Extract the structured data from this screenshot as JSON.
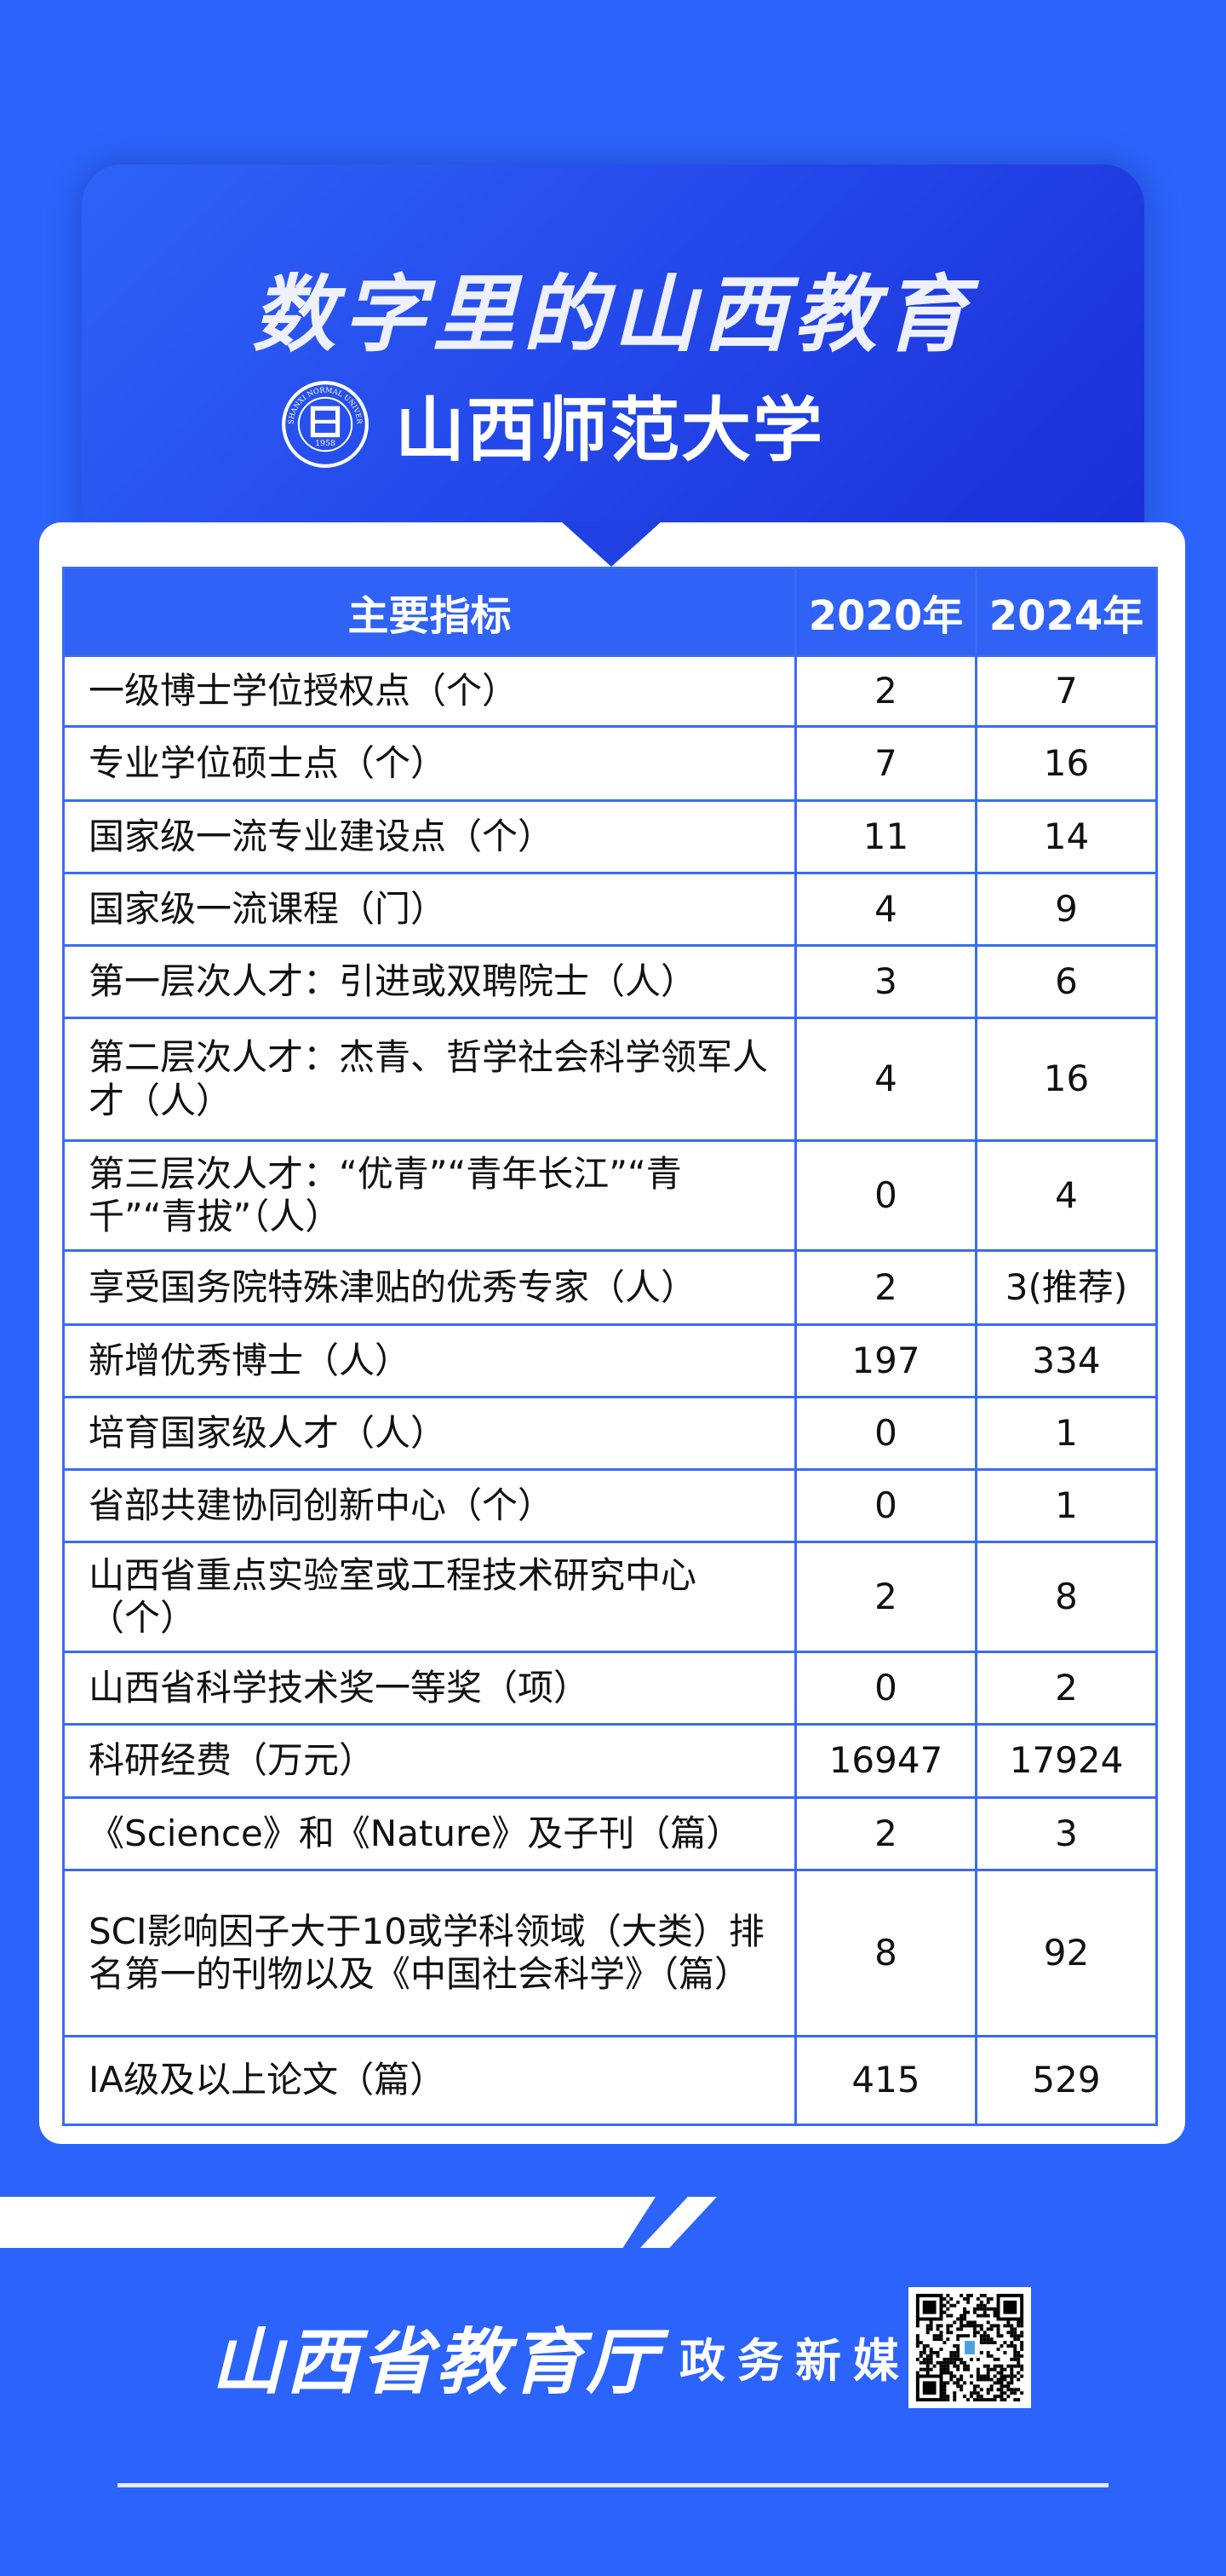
{
  "header": {
    "title": "数字里的山西教育",
    "university": "山西师范大学",
    "seal_text": "SHANXI NORMAL UNIVERSITY 1958"
  },
  "table": {
    "columns": [
      "主要指标",
      "2020年",
      "2024年"
    ],
    "rows": [
      {
        "indicator": "一级博士学位授权点（个）",
        "y2020": "2",
        "y2024": "7"
      },
      {
        "indicator": "专业学位硕士点（个）",
        "y2020": "7",
        "y2024": "16"
      },
      {
        "indicator": "国家级一流专业建设点（个）",
        "y2020": "11",
        "y2024": "14"
      },
      {
        "indicator": "国家级一流课程（门）",
        "y2020": "4",
        "y2024": "9"
      },
      {
        "indicator": "第一层次人才：引进或双聘院士（人）",
        "y2020": "3",
        "y2024": "6"
      },
      {
        "indicator": "第二层次人才：杰青、哲学社会科学领军人才（人）",
        "y2020": "4",
        "y2024": "16"
      },
      {
        "indicator": "第三层次人才：“优青”“青年长江”“青千”“青拔”（人）",
        "y2020": "0",
        "y2024": "4"
      },
      {
        "indicator": "享受国务院特殊津贴的优秀专家（人）",
        "y2020": "2",
        "y2024": "3(推荐)"
      },
      {
        "indicator": "新增优秀博士（人）",
        "y2020": "197",
        "y2024": "334"
      },
      {
        "indicator": "培育国家级人才（人）",
        "y2020": "0",
        "y2024": "1"
      },
      {
        "indicator": "省部共建协同创新中心（个）",
        "y2020": "0",
        "y2024": "1"
      },
      {
        "indicator": "山西省重点实验室或工程技术研究中心（个）",
        "y2020": "2",
        "y2024": "8"
      },
      {
        "indicator": "山西省科学技术奖一等奖（项）",
        "y2020": "0",
        "y2024": "2"
      },
      {
        "indicator": "科研经费（万元）",
        "y2020": "16947",
        "y2024": "17924"
      },
      {
        "indicator": "《Science》和《Nature》及子刊（篇）",
        "y2020": "2",
        "y2024": "3"
      },
      {
        "indicator": "SCI影响因子大于10或学科领域（大类）排名第一的刊物以及《中国社会科学》（篇）",
        "y2020": "8",
        "y2024": "92"
      },
      {
        "indicator": "IA级及以上论文（篇）",
        "y2020": "415",
        "y2024": "529"
      }
    ]
  },
  "footer": {
    "department": "山西省教育厅",
    "media": "政务新媒体",
    "qr_icon": "qr-code-icon"
  },
  "colors": {
    "background": "#2c63fb",
    "table_header": "#2f62f5",
    "border": "#3a6cf2"
  }
}
